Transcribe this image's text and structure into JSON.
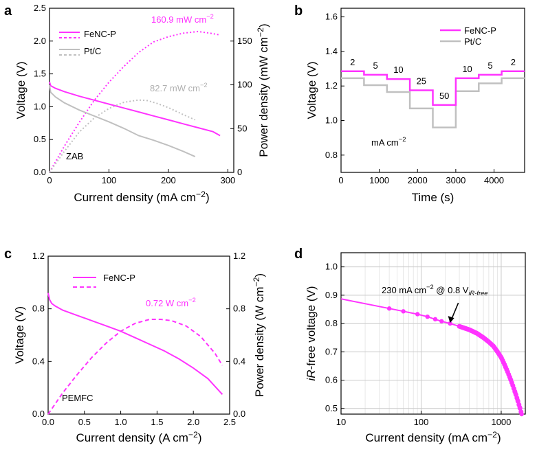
{
  "colors": {
    "fenc": "#ff33ff",
    "ptc": "#c0c0c0",
    "grid": "#c8c8c8",
    "axis": "#000000"
  },
  "chart_data": [
    {
      "panel": "a",
      "type": "line",
      "xlabel": "Current density (mA cm⁻²)",
      "ylabel_left": "Voltage (V)",
      "ylabel_right": "Power density (mW cm⁻²)",
      "xlim": [
        0,
        310
      ],
      "ylim_left": [
        0,
        2.5
      ],
      "ylim_right": [
        0,
        187.5
      ],
      "xticks": [
        0,
        100,
        200,
        300
      ],
      "yticks_left": [
        0.0,
        0.5,
        1.0,
        1.5,
        2.0,
        2.5
      ],
      "yticks_right": [
        0,
        50,
        100,
        150
      ],
      "legend": {
        "position": "top-left",
        "entries": [
          "FeNC-P",
          "Pt/C"
        ]
      },
      "annotations": [
        "160.9 mW cm⁻²",
        "82.7 mW cm⁻²",
        "ZAB"
      ],
      "series": [
        {
          "name": "FeNC-P",
          "kind": "voltage",
          "axis": "left",
          "style": "solid",
          "x": [
            0,
            2,
            10,
            25,
            50,
            75,
            100,
            125,
            150,
            175,
            200,
            225,
            250,
            275,
            287
          ],
          "y": [
            1.38,
            1.32,
            1.28,
            1.23,
            1.16,
            1.1,
            1.04,
            0.98,
            0.92,
            0.86,
            0.8,
            0.74,
            0.68,
            0.62,
            0.56
          ]
        },
        {
          "name": "FeNC-P",
          "kind": "power",
          "axis": "right",
          "style": "dotted",
          "x": [
            0,
            25,
            50,
            75,
            100,
            125,
            150,
            175,
            200,
            225,
            250,
            270,
            287
          ],
          "y": [
            0,
            30,
            57,
            82,
            103,
            121,
            137,
            149,
            155,
            159,
            160.9,
            159,
            157
          ]
        },
        {
          "name": "Pt/C",
          "kind": "voltage",
          "axis": "left",
          "style": "solid",
          "x": [
            0,
            2,
            10,
            25,
            50,
            75,
            100,
            125,
            150,
            175,
            200,
            225,
            245
          ],
          "y": [
            1.33,
            1.22,
            1.15,
            1.06,
            0.95,
            0.86,
            0.77,
            0.67,
            0.56,
            0.49,
            0.41,
            0.32,
            0.24
          ]
        },
        {
          "name": "Pt/C",
          "kind": "power",
          "axis": "right",
          "style": "dotted",
          "x": [
            0,
            25,
            50,
            75,
            100,
            125,
            150,
            165,
            180,
            200,
            225,
            245
          ],
          "y": [
            0,
            24,
            46,
            62,
            73,
            80,
            82.7,
            82,
            79,
            74,
            66,
            60
          ]
        }
      ]
    },
    {
      "panel": "b",
      "type": "line",
      "xlabel": "Time (s)",
      "ylabel": "Voltage (V)",
      "xlim": [
        0,
        4800
      ],
      "ylim": [
        0.7,
        1.65
      ],
      "xticks": [
        0,
        1000,
        2000,
        3000,
        4000
      ],
      "yticks": [
        0.8,
        1.0,
        1.2,
        1.4,
        1.6
      ],
      "legend": {
        "position": "top-right",
        "entries": [
          "FeNC-P",
          "Pt/C"
        ]
      },
      "annotations": [
        "mA  cm⁻²"
      ],
      "step_labels": [
        "2",
        "5",
        "10",
        "25",
        "50",
        "10",
        "5",
        "2"
      ],
      "step_edges": [
        0,
        600,
        1200,
        1800,
        2400,
        3000,
        3600,
        4200,
        4800
      ],
      "series": [
        {
          "name": "FeNC-P",
          "values": [
            1.285,
            1.265,
            1.24,
            1.175,
            1.09,
            1.245,
            1.265,
            1.285
          ]
        },
        {
          "name": "Pt/C",
          "values": [
            1.245,
            1.205,
            1.165,
            1.07,
            0.96,
            1.17,
            1.215,
            1.245
          ]
        }
      ]
    },
    {
      "panel": "c",
      "type": "line",
      "xlabel": "Current density (A cm⁻²)",
      "ylabel_left": "Voltage (V)",
      "ylabel_right": "Power density (W cm⁻²)",
      "xlim": [
        0,
        2.5
      ],
      "ylim_left": [
        0,
        1.2
      ],
      "ylim_right": [
        0,
        1.2
      ],
      "xticks": [
        0.0,
        0.5,
        1.0,
        1.5,
        2.0,
        2.5
      ],
      "xtick_labels": [
        "0.0",
        "0.5",
        "1.0",
        "1.5",
        "2.0",
        "2.5"
      ],
      "yticks_left": [
        0.0,
        0.4,
        0.8,
        1.2
      ],
      "yticks_right": [
        0.0,
        0.4,
        0.8,
        1.2
      ],
      "legend": {
        "position": "top-left",
        "entries": [
          "FeNC-P"
        ]
      },
      "annotations": [
        "0.72 W cm⁻²",
        "PEMFC"
      ],
      "series": [
        {
          "name": "FeNC-P",
          "kind": "voltage",
          "axis": "left",
          "style": "solid",
          "x": [
            0,
            0.02,
            0.05,
            0.1,
            0.2,
            0.4,
            0.6,
            0.8,
            1.0,
            1.2,
            1.4,
            1.6,
            1.8,
            2.0,
            2.2,
            2.4
          ],
          "y": [
            0.92,
            0.87,
            0.84,
            0.82,
            0.79,
            0.75,
            0.71,
            0.67,
            0.63,
            0.58,
            0.53,
            0.48,
            0.42,
            0.35,
            0.27,
            0.15
          ]
        },
        {
          "name": "FeNC-P",
          "kind": "power",
          "axis": "right",
          "style": "dashed",
          "x": [
            0,
            0.2,
            0.4,
            0.6,
            0.8,
            1.0,
            1.2,
            1.4,
            1.55,
            1.7,
            1.9,
            2.1,
            2.3,
            2.4
          ],
          "y": [
            0,
            0.16,
            0.3,
            0.43,
            0.54,
            0.63,
            0.69,
            0.72,
            0.72,
            0.71,
            0.67,
            0.59,
            0.46,
            0.37
          ]
        }
      ]
    },
    {
      "panel": "d",
      "type": "scatter",
      "xlabel": "Current density (mA cm⁻²)",
      "ylabel": "iR-free voltage (V)",
      "xscale": "log",
      "xlim": [
        10,
        2000
      ],
      "ylim": [
        0.48,
        1.05
      ],
      "xticks": [
        10,
        100,
        1000
      ],
      "yticks": [
        0.5,
        0.6,
        0.7,
        0.8,
        0.9,
        1.0
      ],
      "grid": true,
      "annotations": [
        "230 mA cm⁻² @ 0.8 V",
        "iR-free"
      ],
      "series": [
        {
          "name": "FeNC-P",
          "style": "line+markers",
          "x": [
            10,
            40,
            60,
            90,
            120,
            150,
            180,
            230,
            300,
            400,
            500,
            600,
            700,
            800,
            900,
            1000,
            1100,
            1200,
            1300,
            1400,
            1500,
            1600,
            1700,
            1800
          ],
          "y": [
            0.887,
            0.853,
            0.843,
            0.833,
            0.824,
            0.815,
            0.808,
            0.8,
            0.79,
            0.778,
            0.765,
            0.75,
            0.735,
            0.72,
            0.7,
            0.68,
            0.655,
            0.63,
            0.605,
            0.58,
            0.555,
            0.53,
            0.505,
            0.48
          ],
          "markers_x": [
            40,
            60,
            90,
            120,
            150,
            180,
            230,
            300,
            400,
            500,
            600,
            700,
            800,
            900,
            1000,
            1100,
            1200,
            1300,
            1400,
            1500,
            1600,
            1700,
            1800
          ]
        }
      ]
    }
  ]
}
